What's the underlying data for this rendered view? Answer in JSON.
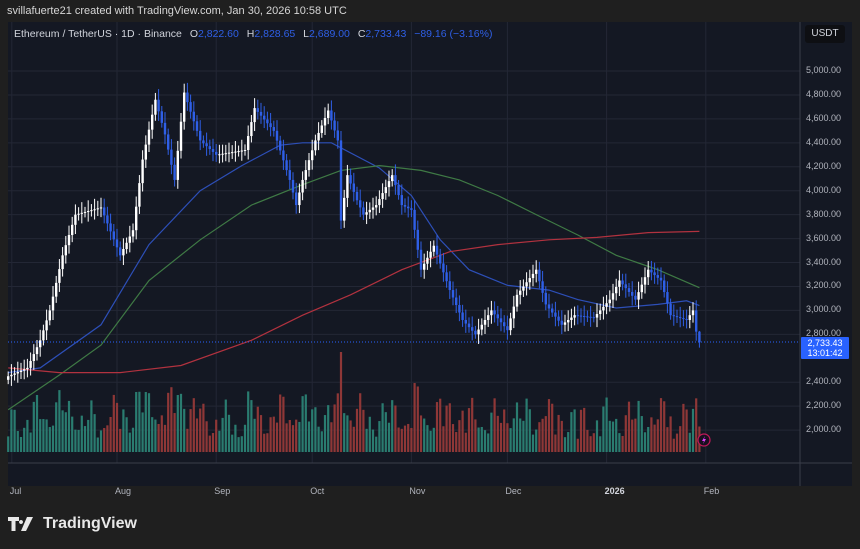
{
  "credit": "svillafuerte21 created with TradingView.com, Jan 30, 2026 10:58 UTC",
  "legend": {
    "symbol": "Ethereum / TetherUS · 1D · Binance",
    "open_label": "O",
    "open": "2,822.60",
    "high_label": "H",
    "high": "2,828.65",
    "low_label": "L",
    "low": "2,689.00",
    "close_label": "C",
    "close": "2,733.43",
    "change": "−89.16",
    "change_pct": "(−3.16%)"
  },
  "currency": "USDT",
  "price_tag": {
    "price": "2,733.43",
    "countdown": "13:01:42"
  },
  "brand": "TradingView",
  "colors": {
    "up": "#ffffff",
    "down": "#2f5fe6",
    "ma_blue": "#2d4fb8",
    "ma_green": "#3f7a45",
    "ma_red": "#b2323f",
    "vol_up": "#2a7c70",
    "vol_down": "#8f3737",
    "background": "#141823"
  },
  "chart_data": {
    "type": "candlestick",
    "title": "",
    "ylim": [
      1800,
      5200
    ],
    "y_ticks": [
      "5,000.00",
      "4,800.00",
      "4,600.00",
      "4,400.00",
      "4,200.00",
      "4,000.00",
      "3,800.00",
      "3,600.00",
      "3,400.00",
      "3,200.00",
      "3,000.00",
      "2,800.00",
      "2,400.00",
      "2,200.00",
      "2,000.00"
    ],
    "y_tick_values": [
      5000,
      4800,
      4600,
      4400,
      4200,
      4000,
      3800,
      3600,
      3400,
      3200,
      3000,
      2800,
      2400,
      2200,
      2000
    ],
    "x_ticks": [
      {
        "label": "Jul",
        "date": "2025-07-01"
      },
      {
        "label": "Aug",
        "date": "2025-08-01"
      },
      {
        "label": "Sep",
        "date": "2025-09-01"
      },
      {
        "label": "Oct",
        "date": "2025-10-01"
      },
      {
        "label": "Nov",
        "date": "2025-11-01"
      },
      {
        "label": "Dec",
        "date": "2025-12-01"
      },
      {
        "label": "2026",
        "date": "2026-01-01",
        "bold": true
      },
      {
        "label": "Feb",
        "date": "2026-02-01"
      }
    ],
    "close_path": [
      [
        "2025-06-28",
        2450
      ],
      [
        "2025-07-04",
        2520
      ],
      [
        "2025-07-08",
        2750
      ],
      [
        "2025-07-11",
        3000
      ],
      [
        "2025-07-15",
        3460
      ],
      [
        "2025-07-19",
        3800
      ],
      [
        "2025-07-27",
        3860
      ],
      [
        "2025-08-02",
        3460
      ],
      [
        "2025-08-06",
        3670
      ],
      [
        "2025-08-09",
        4260
      ],
      [
        "2025-08-13",
        4760
      ],
      [
        "2025-08-16",
        4470
      ],
      [
        "2025-08-19",
        4090
      ],
      [
        "2025-08-22",
        4820
      ],
      [
        "2025-08-27",
        4420
      ],
      [
        "2025-09-01",
        4300
      ],
      [
        "2025-09-10",
        4340
      ],
      [
        "2025-09-13",
        4690
      ],
      [
        "2025-09-19",
        4500
      ],
      [
        "2025-09-24",
        4090
      ],
      [
        "2025-09-26",
        3880
      ],
      [
        "2025-09-28",
        4090
      ],
      [
        "2025-10-02",
        4420
      ],
      [
        "2025-10-06",
        4670
      ],
      [
        "2025-10-09",
        4420
      ],
      [
        "2025-10-10",
        3750
      ],
      [
        "2025-10-12",
        4130
      ],
      [
        "2025-10-15",
        3920
      ],
      [
        "2025-10-17",
        3800
      ],
      [
        "2025-10-21",
        3880
      ],
      [
        "2025-10-26",
        4130
      ],
      [
        "2025-10-29",
        3880
      ],
      [
        "2025-11-01",
        3840
      ],
      [
        "2025-11-04",
        3340
      ],
      [
        "2025-11-08",
        3540
      ],
      [
        "2025-11-13",
        3170
      ],
      [
        "2025-11-17",
        2920
      ],
      [
        "2025-11-21",
        2800
      ],
      [
        "2025-11-26",
        3000
      ],
      [
        "2025-12-01",
        2835
      ],
      [
        "2025-12-04",
        3130
      ],
      [
        "2025-12-10",
        3340
      ],
      [
        "2025-12-13",
        3050
      ],
      [
        "2025-12-18",
        2880
      ],
      [
        "2025-12-22",
        2960
      ],
      [
        "2025-12-28",
        2940
      ],
      [
        "2026-01-02",
        3090
      ],
      [
        "2026-01-05",
        3250
      ],
      [
        "2026-01-10",
        3090
      ],
      [
        "2026-01-14",
        3340
      ],
      [
        "2026-01-18",
        3250
      ],
      [
        "2026-01-21",
        2960
      ],
      [
        "2026-01-26",
        2920
      ],
      [
        "2026-01-28",
        3000
      ],
      [
        "2026-01-29",
        2822.6
      ]
    ],
    "last_candle": {
      "date": "2026-01-30",
      "open": 2822.6,
      "high": 2828.65,
      "low": 2689.0,
      "close": 2733.43
    },
    "moving_averages": [
      {
        "color": "#2d4fb8",
        "points": [
          [
            "2025-06-28",
            2480
          ],
          [
            "2025-07-08",
            2520
          ],
          [
            "2025-07-27",
            2880
          ],
          [
            "2025-08-11",
            3550
          ],
          [
            "2025-08-27",
            4000
          ],
          [
            "2025-09-09",
            4210
          ],
          [
            "2025-09-21",
            4380
          ],
          [
            "2025-09-28",
            4400
          ],
          [
            "2025-10-07",
            4400
          ],
          [
            "2025-10-22",
            4190
          ],
          [
            "2025-11-01",
            3960
          ],
          [
            "2025-11-10",
            3590
          ],
          [
            "2025-11-19",
            3340
          ],
          [
            "2025-12-01",
            3210
          ],
          [
            "2025-12-14",
            3170
          ],
          [
            "2025-12-23",
            3090
          ],
          [
            "2026-01-04",
            3020
          ],
          [
            "2026-01-17",
            3050
          ],
          [
            "2026-01-26",
            3080
          ],
          [
            "2026-01-30",
            3040
          ]
        ]
      },
      {
        "color": "#3f7a45",
        "points": [
          [
            "2025-06-28",
            2170
          ],
          [
            "2025-07-14",
            2460
          ],
          [
            "2025-07-27",
            2710
          ],
          [
            "2025-08-11",
            3250
          ],
          [
            "2025-08-27",
            3590
          ],
          [
            "2025-09-12",
            3880
          ],
          [
            "2025-09-28",
            4050
          ],
          [
            "2025-10-10",
            4170
          ],
          [
            "2025-10-22",
            4210
          ],
          [
            "2025-11-04",
            4170
          ],
          [
            "2025-11-16",
            4090
          ],
          [
            "2025-11-28",
            3960
          ],
          [
            "2025-12-10",
            3800
          ],
          [
            "2025-12-23",
            3630
          ],
          [
            "2026-01-04",
            3460
          ],
          [
            "2026-01-17",
            3340
          ],
          [
            "2026-01-30",
            3190
          ]
        ]
      },
      {
        "color": "#b2323f",
        "points": [
          [
            "2025-06-28",
            2520
          ],
          [
            "2025-07-14",
            2480
          ],
          [
            "2025-08-02",
            2480
          ],
          [
            "2025-08-21",
            2540
          ],
          [
            "2025-09-12",
            2750
          ],
          [
            "2025-09-28",
            2960
          ],
          [
            "2025-10-13",
            3130
          ],
          [
            "2025-10-29",
            3340
          ],
          [
            "2025-11-13",
            3490
          ],
          [
            "2025-11-28",
            3550
          ],
          [
            "2025-12-14",
            3590
          ],
          [
            "2025-12-29",
            3610
          ],
          [
            "2026-01-14",
            3650
          ],
          [
            "2026-01-30",
            3660
          ]
        ]
      }
    ]
  }
}
